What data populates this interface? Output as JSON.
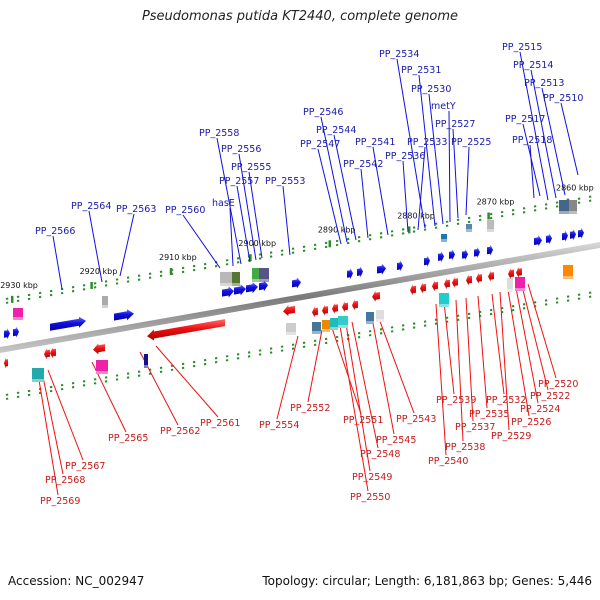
{
  "title": "Pseudomonas putida KT2440, complete genome",
  "footer": {
    "accession": "Accession: NC_002947",
    "summary": "Topology: circular; Length: 6,181,863 bp; Genes: 5,446"
  },
  "colors": {
    "forward_gene": "#1010e0",
    "reverse_gene": "#ee1111",
    "forward_label": "#1a1aa8",
    "reverse_label": "#c41a1a",
    "backbone": "#888888",
    "tick": "#2e8b2e"
  },
  "scale": {
    "unit": "kbp",
    "ticks": [
      {
        "label": "2860 kbp",
        "pos": 2860
      },
      {
        "label": "2870 kbp",
        "pos": 2870
      },
      {
        "label": "2880 kbp",
        "pos": 2880
      },
      {
        "label": "2890 kbp",
        "pos": 2890
      },
      {
        "label": "2900 kbp",
        "pos": 2900
      },
      {
        "label": "2910 kbp",
        "pos": 2910
      },
      {
        "label": "2920 kbp",
        "pos": 2920
      },
      {
        "label": "2930 kbp",
        "pos": 2930
      }
    ]
  },
  "forward_genes": [
    {
      "label": "PP_2510"
    },
    {
      "label": "PP_2513"
    },
    {
      "label": "PP_2514"
    },
    {
      "label": "PP_2515"
    },
    {
      "label": "PP_2517"
    },
    {
      "label": "PP_2518"
    },
    {
      "label": "PP_2525"
    },
    {
      "label": "PP_2527"
    },
    {
      "label": "metY"
    },
    {
      "label": "PP_2530"
    },
    {
      "label": "PP_2531"
    },
    {
      "label": "PP_2534"
    },
    {
      "label": "PP_2533"
    },
    {
      "label": "PP_2536"
    },
    {
      "label": "PP_2541"
    },
    {
      "label": "PP_2542"
    },
    {
      "label": "PP_2544"
    },
    {
      "label": "PP_2546"
    },
    {
      "label": "PP_2547"
    },
    {
      "label": "PP_2553"
    },
    {
      "label": "PP_2555"
    },
    {
      "label": "PP_2556"
    },
    {
      "label": "PP_2557"
    },
    {
      "label": "PP_2558"
    },
    {
      "label": "hasE"
    },
    {
      "label": "PP_2560"
    },
    {
      "label": "PP_2563"
    },
    {
      "label": "PP_2564"
    },
    {
      "label": "PP_2566"
    }
  ],
  "reverse_genes": [
    {
      "label": "PP_2520"
    },
    {
      "label": "PP_2522"
    },
    {
      "label": "PP_2524"
    },
    {
      "label": "PP_2526"
    },
    {
      "label": "PP_2529"
    },
    {
      "label": "PP_2532"
    },
    {
      "label": "PP_2535"
    },
    {
      "label": "PP_2537"
    },
    {
      "label": "PP_2538"
    },
    {
      "label": "PP_2539"
    },
    {
      "label": "PP_2540"
    },
    {
      "label": "PP_2543"
    },
    {
      "label": "PP_2545"
    },
    {
      "label": "PP_2548"
    },
    {
      "label": "PP_2549"
    },
    {
      "label": "PP_2550"
    },
    {
      "label": "PP_2551"
    },
    {
      "label": "PP_2552"
    },
    {
      "label": "PP_2554"
    },
    {
      "label": "PP_2561"
    },
    {
      "label": "PP_2562"
    },
    {
      "label": "PP_2565"
    },
    {
      "label": "PP_2567"
    },
    {
      "label": "PP_2568"
    },
    {
      "label": "PP_2569"
    }
  ]
}
